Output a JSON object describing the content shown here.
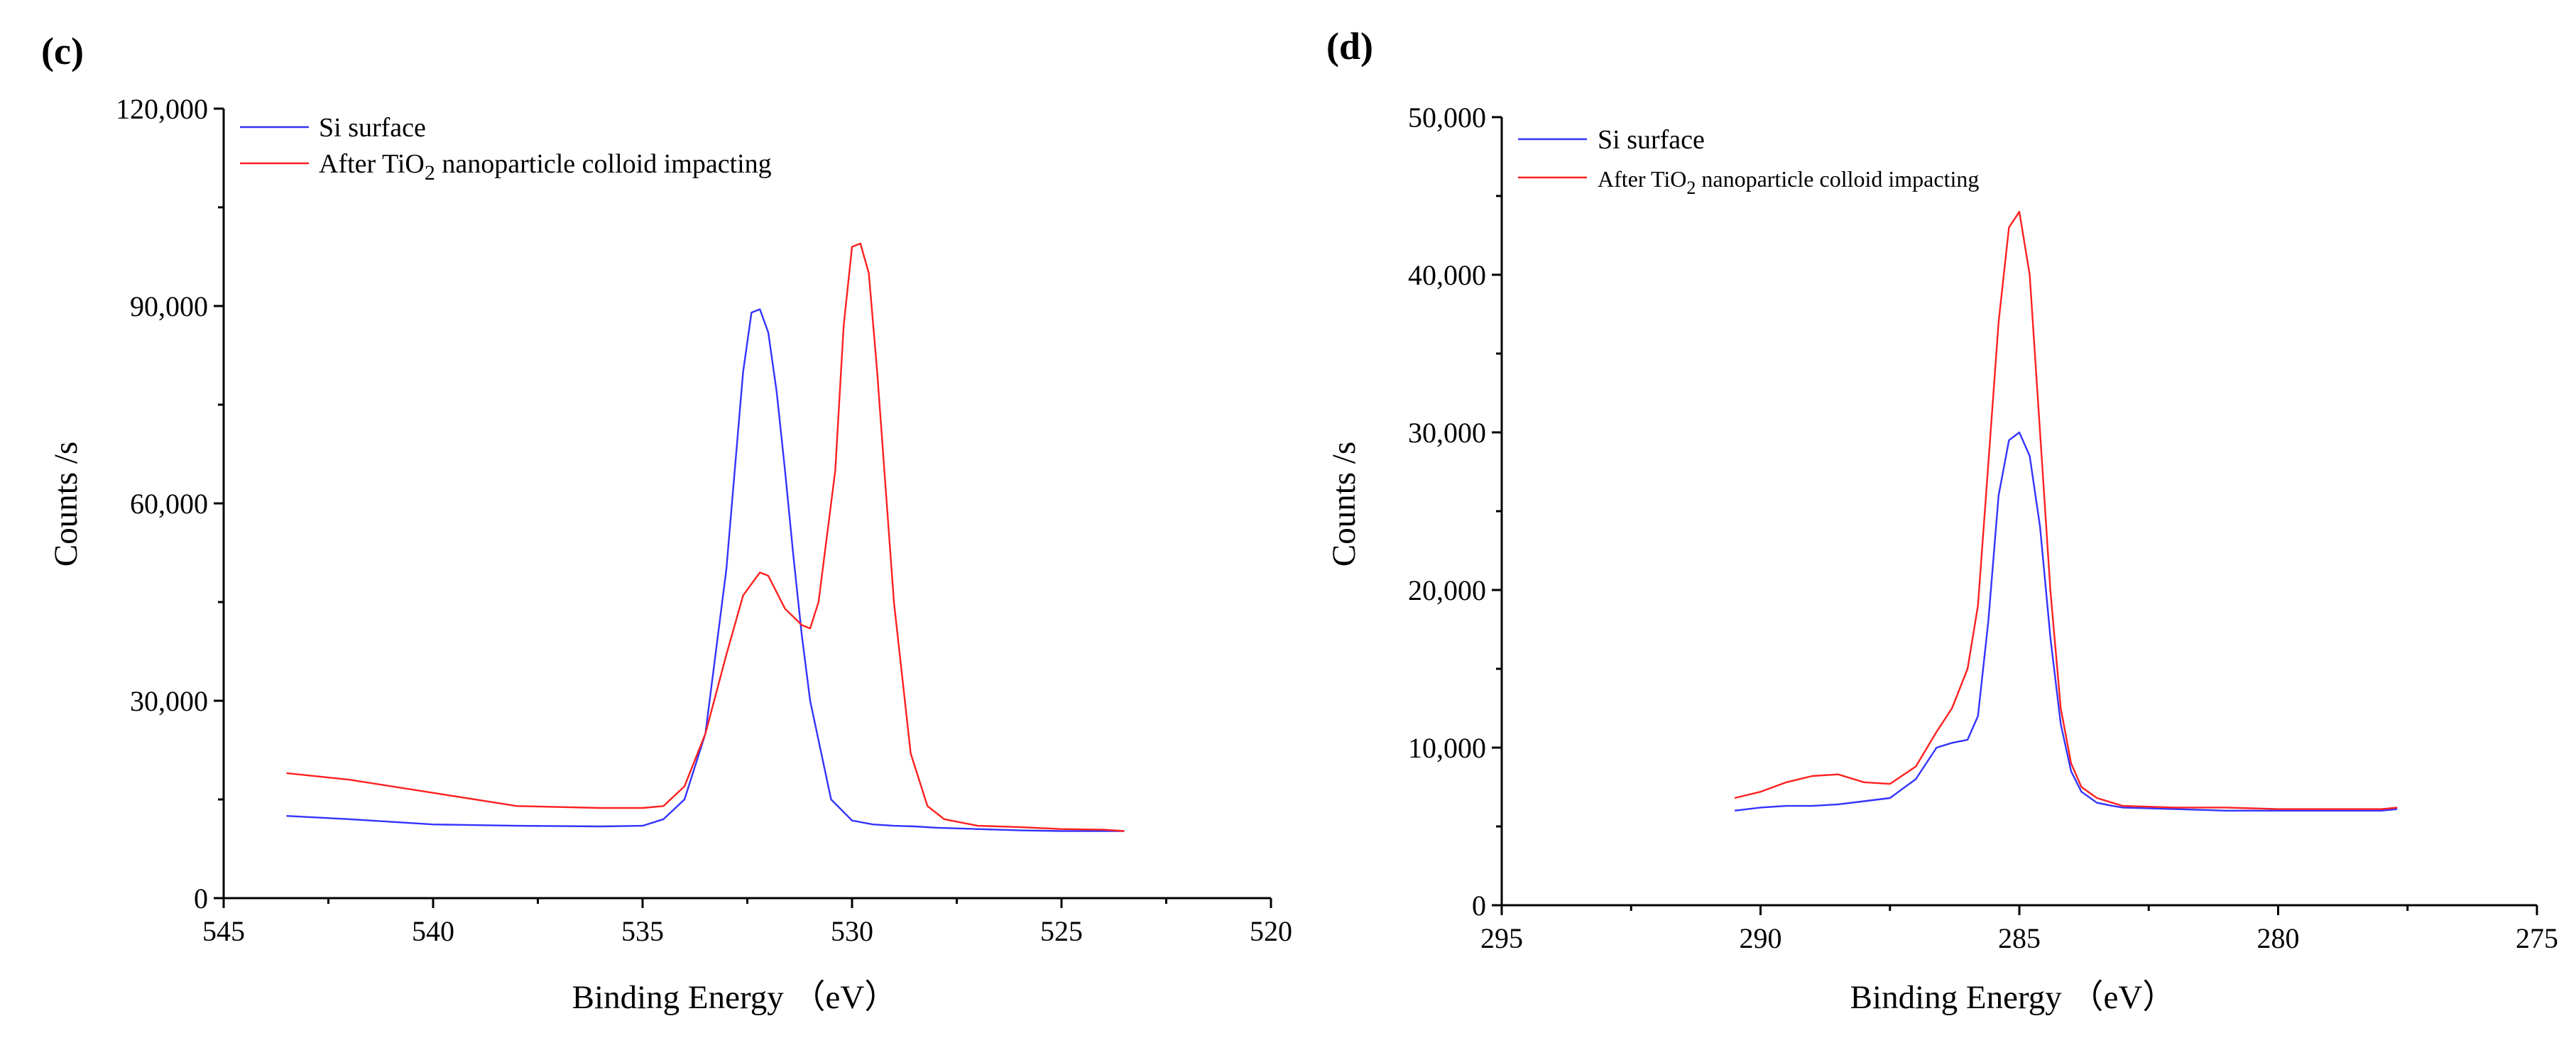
{
  "chart_data": [
    {
      "type": "line",
      "panel_label": "(c)",
      "xlabel": "Binding Energy （eV）",
      "ylabel": "Counts /s",
      "xlim": [
        545,
        520
      ],
      "ylim": [
        0,
        120000
      ],
      "x_ticks": [
        545,
        540,
        535,
        530,
        525,
        520
      ],
      "x_tick_labels": [
        "545",
        "540",
        "535",
        "530",
        "525",
        "520"
      ],
      "y_ticks": [
        0,
        30000,
        60000,
        90000,
        120000
      ],
      "y_tick_labels": [
        "0",
        "30,000",
        "60,000",
        "90,000",
        "120,000"
      ],
      "legend_placement": "top-left",
      "series": [
        {
          "name": "Si surface",
          "legend_main": "Si surface",
          "legend_sub": "",
          "legend_tail": "",
          "color": "#3333ff",
          "x": [
            543.5,
            542,
            540,
            538,
            536,
            535,
            534.5,
            534,
            533.5,
            533,
            532.8,
            532.6,
            532.4,
            532.2,
            532.0,
            531.8,
            531.6,
            531.4,
            531.2,
            531,
            530.5,
            530,
            529.5,
            529,
            528.5,
            528,
            527,
            526,
            525,
            524,
            523.5
          ],
          "y": [
            12500,
            12000,
            11200,
            11000,
            10900,
            11000,
            12000,
            15000,
            25000,
            50000,
            65000,
            80000,
            89000,
            89500,
            86000,
            77000,
            65000,
            52000,
            40000,
            30000,
            15000,
            11800,
            11200,
            11000,
            10900,
            10700,
            10500,
            10300,
            10200,
            10200,
            10200
          ]
        },
        {
          "name": "After TiO2 nanoparticle colloid impacting",
          "legend_main": "After TiO",
          "legend_sub": "2",
          "legend_tail": " nanoparticle colloid impacting",
          "color": "#ff2020",
          "x": [
            543.5,
            542,
            540,
            538,
            536,
            535,
            534.5,
            534,
            533.5,
            533,
            532.6,
            532.2,
            532.0,
            531.6,
            531.2,
            531.0,
            530.8,
            530.4,
            530.2,
            530.0,
            529.8,
            529.6,
            529.4,
            529.0,
            528.6,
            528.2,
            527.8,
            527,
            526,
            525,
            524,
            523.5
          ],
          "y": [
            19000,
            18000,
            16000,
            14000,
            13700,
            13700,
            14000,
            17000,
            25000,
            37000,
            46000,
            49500,
            49000,
            44000,
            41500,
            41000,
            45000,
            65000,
            87000,
            99000,
            99500,
            95000,
            80000,
            45000,
            22000,
            14000,
            12000,
            11000,
            10800,
            10500,
            10400,
            10200
          ]
        }
      ]
    },
    {
      "type": "line",
      "panel_label": "(d)",
      "xlabel": "Binding Energy （eV）",
      "ylabel": "Counts /s",
      "xlim": [
        295,
        275
      ],
      "ylim": [
        0,
        50000
      ],
      "x_ticks": [
        295,
        290,
        285,
        280,
        275
      ],
      "x_tick_labels": [
        "295",
        "290",
        "285",
        "280",
        "275"
      ],
      "y_ticks": [
        0,
        10000,
        20000,
        30000,
        40000,
        50000
      ],
      "y_tick_labels": [
        "0",
        "10,000",
        "20,000",
        "30,000",
        "40,000",
        "50,000"
      ],
      "legend_placement": "top-left",
      "series": [
        {
          "name": "Si surface",
          "legend_main": "Si surface",
          "legend_sub": "",
          "legend_tail": "",
          "color": "#3333ff",
          "x": [
            290.5,
            290,
            289.5,
            289,
            288.5,
            288,
            287.5,
            287,
            286.6,
            286.3,
            286.0,
            285.8,
            285.6,
            285.4,
            285.2,
            285.0,
            284.8,
            284.6,
            284.4,
            284.2,
            284.0,
            283.8,
            283.5,
            283.2,
            283,
            282,
            281,
            280,
            279,
            278,
            277.7
          ],
          "y": [
            6000,
            6200,
            6300,
            6300,
            6400,
            6600,
            6800,
            8000,
            10000,
            10300,
            10500,
            12000,
            18000,
            26000,
            29500,
            30000,
            28500,
            24000,
            17000,
            11500,
            8500,
            7200,
            6500,
            6300,
            6200,
            6100,
            6000,
            6000,
            6000,
            6000,
            6100
          ]
        },
        {
          "name": "After TiO2 nanoparticle colloid impacting",
          "legend_main": "After TiO",
          "legend_sub": "2",
          "legend_tail": " nanoparticle colloid impacting",
          "color": "#ff2020",
          "x": [
            290.5,
            290,
            289.5,
            289,
            288.5,
            288.2,
            288,
            287.5,
            287,
            286.6,
            286.3,
            286.0,
            285.8,
            285.6,
            285.4,
            285.2,
            285.0,
            284.8,
            284.6,
            284.4,
            284.2,
            284.0,
            283.8,
            283.5,
            283.2,
            283,
            282,
            281,
            280,
            279,
            278,
            277.7
          ],
          "y": [
            6800,
            7200,
            7800,
            8200,
            8300,
            8000,
            7800,
            7700,
            8800,
            11000,
            12500,
            15000,
            19000,
            28000,
            37000,
            43000,
            44000,
            40000,
            30000,
            20000,
            12500,
            9000,
            7500,
            6800,
            6500,
            6300,
            6200,
            6200,
            6100,
            6100,
            6100,
            6200
          ]
        }
      ]
    }
  ]
}
